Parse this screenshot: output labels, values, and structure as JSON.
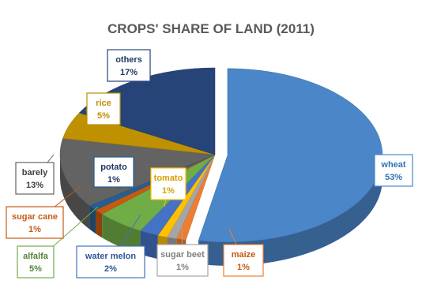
{
  "chart_data": {
    "type": "pie",
    "title": "CROPS' SHARE OF LAND (2011)",
    "slices": [
      {
        "name": "wheat",
        "value": 53,
        "label": "53%",
        "color": "#4a86c8",
        "label_color": "#2e75b6"
      },
      {
        "name": "maize",
        "value": 1,
        "label": "1%",
        "color": "#ed7d31",
        "label_color": "#c55a11"
      },
      {
        "name": "sugar beet",
        "value": 1,
        "label": "1%",
        "color": "#a5a5a5",
        "label_color": "#7f7f7f"
      },
      {
        "name": "tomato",
        "value": 1,
        "label": "1%",
        "color": "#ffc000",
        "label_color": "#d4a000"
      },
      {
        "name": "water melon",
        "value": 2,
        "label": "2%",
        "color": "#4472c4",
        "label_color": "#2f5597"
      },
      {
        "name": "alfalfa",
        "value": 5,
        "label": "5%",
        "color": "#70ad47",
        "label_color": "#548235"
      },
      {
        "name": "sugar cane",
        "value": 1,
        "label": "1%",
        "color": "#c55a11",
        "label_color": "#c55a11"
      },
      {
        "name": "potato",
        "value": 1,
        "label": "1%",
        "color": "#255e91",
        "label_color": "#1f3864"
      },
      {
        "name": "barely",
        "value": 13,
        "label": "13%",
        "color": "#636363",
        "label_color": "#404040"
      },
      {
        "name": "rice",
        "value": 5,
        "label": "5%",
        "color": "#bf9000",
        "label_color": "#bf9000"
      },
      {
        "name": "others",
        "value": 17,
        "label": "17%",
        "color": "#264478",
        "label_color": "#1f3864"
      }
    ],
    "start_angle_deg": -90,
    "style": "3d-exploded-pie"
  }
}
